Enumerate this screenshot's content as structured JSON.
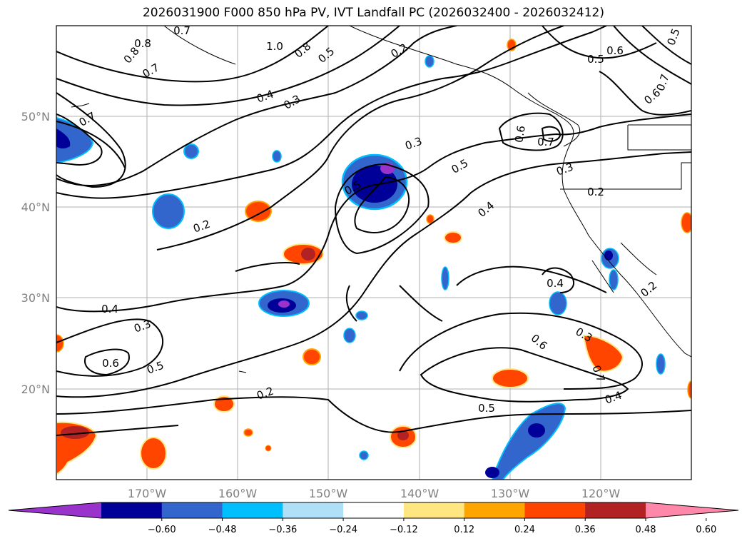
{
  "title": "2026031900 F000 850 hPa PV, IVT Landfall PC (2026032400 - 2026032412)",
  "axes": {
    "lon_labels": [
      "170°W",
      "160°W",
      "150°W",
      "140°W",
      "130°W",
      "120°W"
    ],
    "lat_labels": [
      "50°N",
      "40°N",
      "30°N",
      "20°N"
    ]
  },
  "colorbar": {
    "tick_labels": [
      "−0.60",
      "−0.48",
      "−0.36",
      "−0.24",
      "−0.12",
      "0.12",
      "0.24",
      "0.36",
      "0.48",
      "0.60"
    ],
    "colors": [
      "#9933cc",
      "#000099",
      "#3366cc",
      "#00bfff",
      "#b0e0f8",
      "#ffffff",
      "#ffe680",
      "#ffa500",
      "#ff4500",
      "#b22222",
      "#ff88aa"
    ]
  },
  "contour_labels": [
    "0.7",
    "0.8",
    "0.8",
    "0.7",
    "1.0",
    "0.8",
    "0.5",
    "0.2",
    "0.5",
    "0.6",
    "0.5",
    "0.6",
    "0.4",
    "0.3",
    "0.7",
    "0.3",
    "0.7",
    "0.6",
    "0.7",
    "0.3",
    "0.5",
    "0.5",
    "0.2",
    "0.2",
    "0.4",
    "0.2",
    "0.4",
    "0.3",
    "0.5",
    "0.4",
    "0.6",
    "0.3",
    "0.6",
    "0.2",
    "0.5",
    "0.7",
    "0.4"
  ]
}
